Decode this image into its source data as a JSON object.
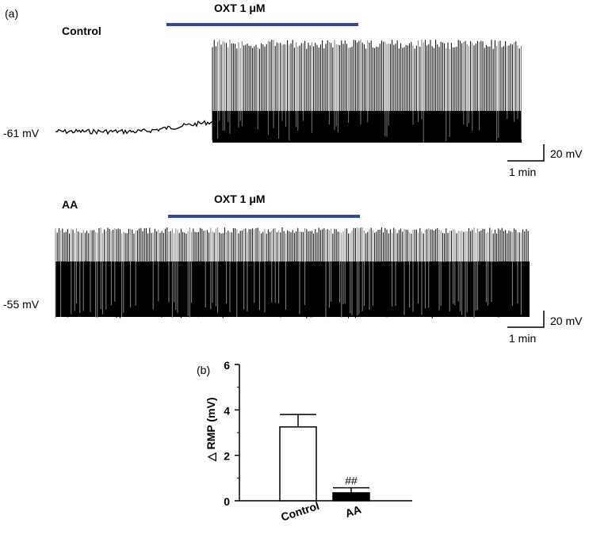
{
  "panel_a": {
    "label": "(a)",
    "top": {
      "condition": "Control",
      "drug_label": "OXT 1 μM",
      "rmp_label": "-61 mV",
      "scale_v": "20 mV",
      "scale_t": "1 min"
    },
    "bottom": {
      "condition": "AA",
      "drug_label": "OXT 1 μM",
      "rmp_label": "-55 mV",
      "scale_v": "20 mV",
      "scale_t": "1 min"
    },
    "bar_color": "#2e4a9a"
  },
  "panel_b": {
    "label": "(b)",
    "annotation": "##"
  },
  "chart_data": {
    "type": "bar",
    "categories": [
      "Control",
      "AA"
    ],
    "values": [
      3.25,
      0.35
    ],
    "errors": [
      0.55,
      0.22
    ],
    "fills": [
      "#ffffff",
      "#000000"
    ],
    "ylabel": "△  RMP (mV)",
    "ylim": [
      0,
      6
    ],
    "yticks": [
      0,
      2,
      4,
      6
    ]
  }
}
